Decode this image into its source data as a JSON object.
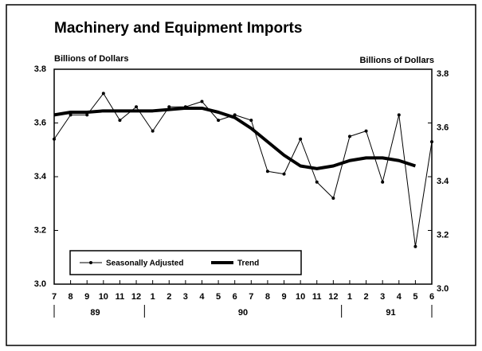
{
  "chart_data": {
    "type": "line",
    "title": "Machinery and Equipment Imports",
    "y_label": "Billions of Dollars",
    "y2_label": "Billions of Dollars",
    "categories": [
      "7",
      "8",
      "9",
      "10",
      "11",
      "12",
      "1",
      "2",
      "3",
      "4",
      "5",
      "6",
      "7",
      "8",
      "9",
      "10",
      "11",
      "12",
      "1",
      "2",
      "3",
      "4",
      "5",
      "6"
    ],
    "groups": [
      {
        "label": "89",
        "start": 0,
        "end": 5
      },
      {
        "label": "90",
        "start": 6,
        "end": 17
      },
      {
        "label": "91",
        "start": 18,
        "end": 23
      }
    ],
    "series": [
      {
        "name": "Seasonally Adjusted",
        "color": "#000000",
        "markers": true,
        "values": [
          3.54,
          3.63,
          3.63,
          3.71,
          3.61,
          3.66,
          3.57,
          3.66,
          3.66,
          3.68,
          3.61,
          3.63,
          3.61,
          3.42,
          3.41,
          3.54,
          3.38,
          3.32,
          3.55,
          3.57,
          3.38,
          3.63,
          3.14,
          3.53
        ]
      },
      {
        "name": "Trend",
        "color": "#000000",
        "markers": false,
        "values": [
          3.63,
          3.64,
          3.64,
          3.645,
          3.645,
          3.645,
          3.645,
          3.65,
          3.655,
          3.655,
          3.64,
          3.62,
          3.58,
          3.53,
          3.48,
          3.44,
          3.43,
          3.44,
          3.46,
          3.47,
          3.47,
          3.46,
          3.44,
          null
        ]
      }
    ],
    "ylim": [
      3.0,
      3.8
    ],
    "yticks": [
      {
        "value": 3.0,
        "label": "3.0"
      },
      3.2,
      3.4,
      3.6,
      3.8
    ],
    "y2lim": [
      3.0,
      3.8
    ],
    "y2ticks": [
      {
        "value": 3.0,
        "label": "3.0"
      },
      3.2,
      3.4,
      3.6,
      3.8
    ],
    "legend": "lower left"
  }
}
